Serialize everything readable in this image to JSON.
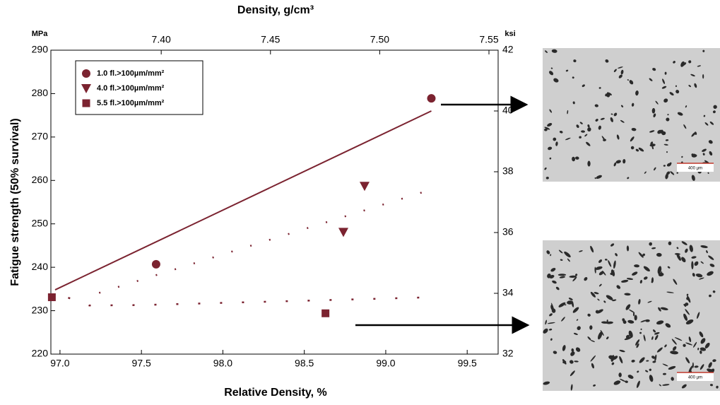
{
  "chart_data": {
    "type": "scatter",
    "x_label": "Relative Density, %",
    "x2_label": "Density, g/cm³",
    "y_label": "Fatigue strength (50% survival)",
    "y_unit": "MPa",
    "y2_unit": "ksi",
    "color": "#7b2330",
    "xlim": [
      96.944,
      99.69
    ],
    "xticks": [
      {
        "value": 97,
        "label": "97.0"
      },
      97.5,
      {
        "value": 98,
        "label": "98.0"
      },
      98.5,
      {
        "value": 99,
        "label": "99.0"
      },
      99.5
    ],
    "x2lim": [
      7.3495,
      7.5542
    ],
    "x2ticks": [
      {
        "value": 7.4,
        "label": "7.40"
      },
      7.45,
      {
        "value": 7.5,
        "label": "7.50"
      },
      7.55
    ],
    "ylim": [
      220,
      290
    ],
    "yticks": [
      220,
      230,
      240,
      250,
      260,
      270,
      280,
      290
    ],
    "y2lim": [
      32,
      42
    ],
    "y2ticks": [
      32,
      34,
      36,
      38,
      40,
      42
    ],
    "legend": "upper left",
    "series": [
      {
        "name": "1.0  fl.>100µm/mm²",
        "marker": "circle",
        "x": [
          97.59,
          99.28
        ],
        "values": [
          240.7,
          278.9
        ]
      },
      {
        "name": "4.0  fl.>100µm/mm²",
        "marker": "triangle",
        "x": [
          98.74,
          98.87
        ],
        "values": [
          248.1,
          258.7
        ]
      },
      {
        "name": "5.5  fl.>100µm/mm²",
        "marker": "square",
        "x": [
          96.95,
          98.63
        ],
        "values": [
          233.1,
          229.4
        ]
      }
    ],
    "trend_lines": [
      {
        "style": "solid",
        "x": [
          96.97,
          99.28
        ],
        "values": [
          234.8,
          276.0
        ]
      },
      {
        "style": "dashed",
        "x": [
          97.24,
          99.28
        ],
        "values": [
          234.1,
          257.9
        ]
      },
      {
        "style": "dotted",
        "x": [
          97.05,
          97.18,
          97.5,
          98.0,
          98.5,
          99.0,
          99.28
        ],
        "values": [
          233.0,
          231.2,
          231.3,
          231.8,
          232.3,
          232.8,
          233.1
        ]
      }
    ],
    "image_scale_labels": [
      "400 µm",
      "400 µm"
    ]
  }
}
